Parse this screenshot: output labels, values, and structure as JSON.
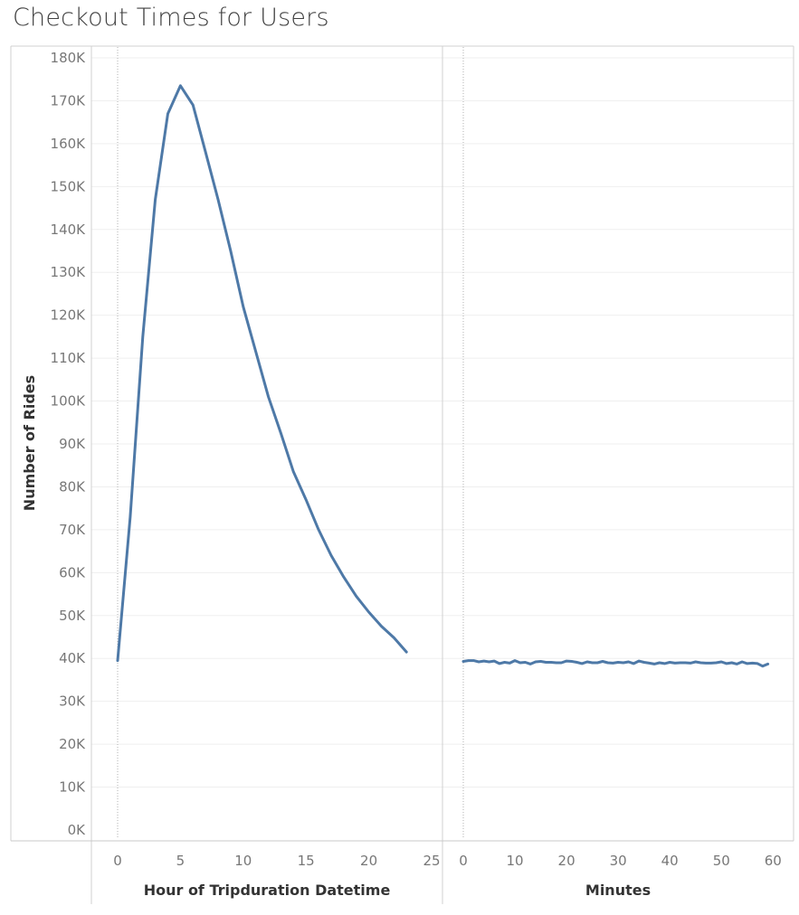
{
  "title": "Checkout Times for Users",
  "chart_data": {
    "type": "line",
    "title": "Checkout Times for Users",
    "ylabel": "Number of Rides",
    "ylim": [
      0,
      180000
    ],
    "y_ticks": [
      0,
      10000,
      20000,
      30000,
      40000,
      50000,
      60000,
      70000,
      80000,
      90000,
      100000,
      110000,
      120000,
      130000,
      140000,
      150000,
      160000,
      170000,
      180000
    ],
    "y_tick_labels": [
      "0K",
      "10K",
      "20K",
      "30K",
      "40K",
      "50K",
      "60K",
      "70K",
      "80K",
      "90K",
      "100K",
      "110K",
      "120K",
      "130K",
      "140K",
      "150K",
      "160K",
      "170K",
      "180K"
    ],
    "grid": true,
    "line_color": "#4e79a7",
    "panes": [
      {
        "xlabel": "Hour of Tripduration Datetime",
        "xlim": [
          0,
          25
        ],
        "x_ticks": [
          0,
          5,
          10,
          15,
          20,
          25
        ],
        "x_tick_labels": [
          "0",
          "5",
          "10",
          "15",
          "20",
          "25"
        ],
        "series": [
          {
            "x": [
              0,
              1,
              2,
              3,
              4,
              5,
              6,
              7,
              8,
              9,
              10,
              11,
              12,
              13,
              14,
              15,
              16,
              17,
              18,
              19,
              20,
              21,
              22,
              23
            ],
            "values": [
              39500,
              73000,
              115000,
              147000,
              167000,
              173500,
              169000,
              158000,
              147000,
              135000,
              122000,
              111500,
              101000,
              92500,
              83500,
              77000,
              70000,
              64000,
              59000,
              54500,
              50800,
              47500,
              44800,
              41500
            ]
          }
        ]
      },
      {
        "xlabel": "Minutes",
        "xlim": [
          0,
          61
        ],
        "x_ticks": [
          0,
          10,
          20,
          30,
          40,
          50,
          60
        ],
        "x_tick_labels": [
          "0",
          "10",
          "20",
          "30",
          "40",
          "50",
          "60"
        ],
        "series": [
          {
            "x": [
              0,
              1,
              2,
              3,
              4,
              5,
              6,
              7,
              8,
              9,
              10,
              11,
              12,
              13,
              14,
              15,
              16,
              17,
              18,
              19,
              20,
              21,
              22,
              23,
              24,
              25,
              26,
              27,
              28,
              29,
              30,
              31,
              32,
              33,
              34,
              35,
              36,
              37,
              38,
              39,
              40,
              41,
              42,
              43,
              44,
              45,
              46,
              47,
              48,
              49,
              50,
              51,
              52,
              53,
              54,
              55,
              56,
              57,
              58,
              59
            ],
            "values": [
              39300,
              39500,
              39500,
              39200,
              39400,
              39200,
              39400,
              38800,
              39100,
              38900,
              39500,
              39000,
              39100,
              38700,
              39200,
              39300,
              39100,
              39100,
              39000,
              39000,
              39400,
              39300,
              39100,
              38800,
              39200,
              39000,
              39000,
              39300,
              39000,
              38900,
              39100,
              39000,
              39200,
              38800,
              39400,
              39100,
              38900,
              38700,
              39000,
              38800,
              39100,
              38900,
              39000,
              39000,
              38900,
              39200,
              39000,
              38900,
              38900,
              39000,
              39200,
              38800,
              39000,
              38700,
              39200,
              38800,
              38900,
              38800,
              38200,
              38700
            ]
          }
        ]
      }
    ]
  }
}
